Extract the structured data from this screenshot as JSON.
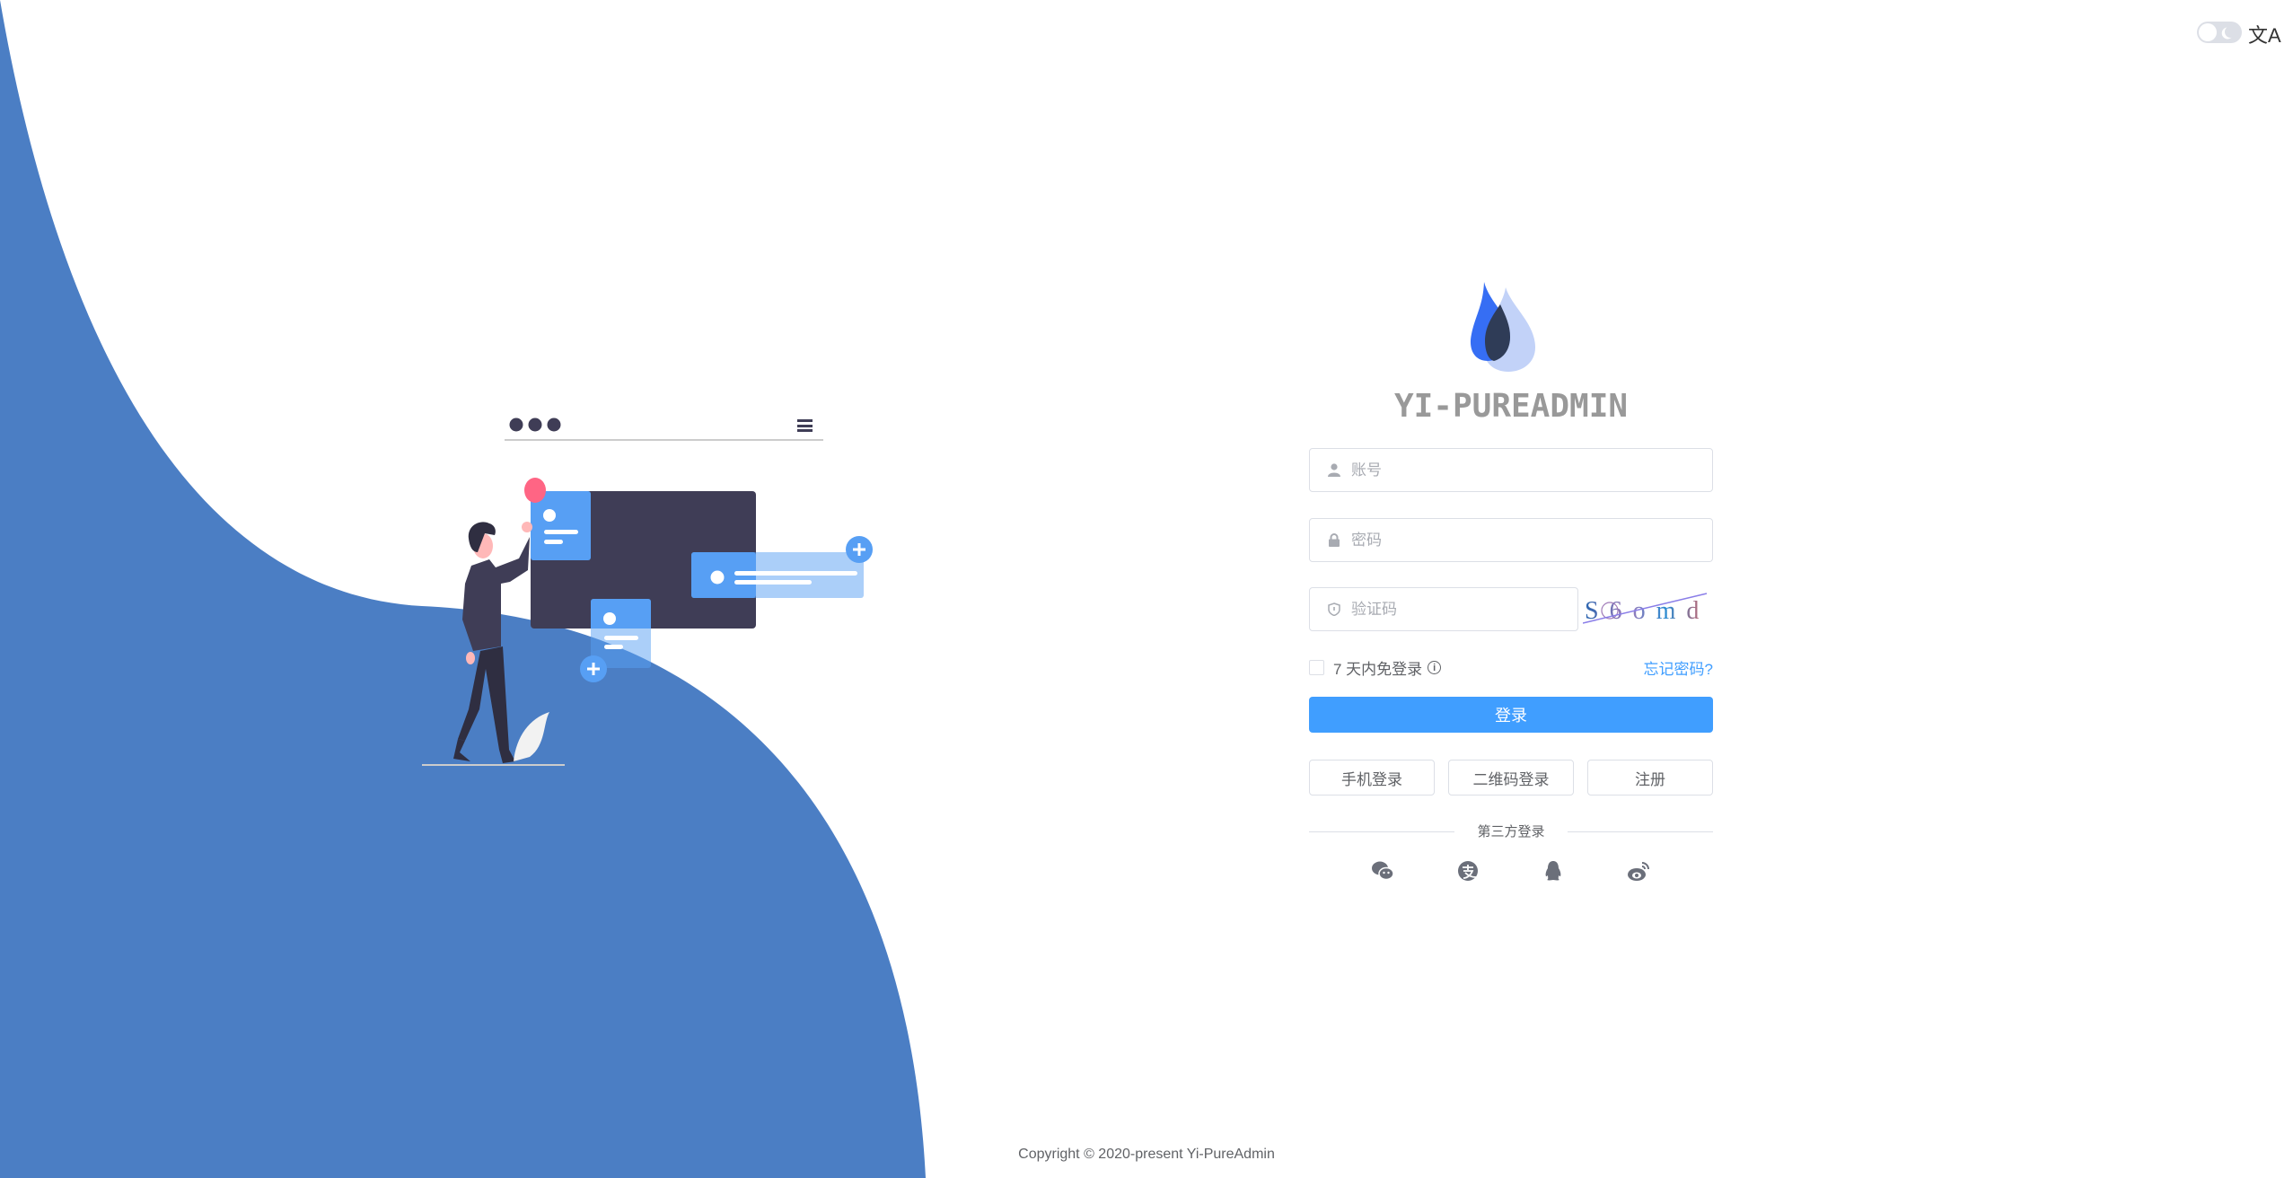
{
  "theme": {
    "accent": "#409eff",
    "background_wave": "#4b7ec4",
    "illustration_dark": "#3f3d56",
    "illustration_blue": "#579ff4",
    "illustration_red": "#ff6584"
  },
  "header": {
    "dark_mode_toggle": "off",
    "language_icon": "translate-icon",
    "language_glyph": "文A"
  },
  "brand": {
    "title": "YI-PUREADMIN"
  },
  "form": {
    "username": {
      "placeholder": "账号",
      "value": "",
      "icon": "user-icon"
    },
    "password": {
      "placeholder": "密码",
      "value": "",
      "icon": "lock-icon"
    },
    "captcha": {
      "placeholder": "验证码",
      "value": "",
      "icon": "shield-icon",
      "image_text": "S6omd"
    },
    "remember_label": "7 天内免登录",
    "remember_checked": false,
    "forgot_label": "忘记密码?",
    "login_label": "登录",
    "alt_buttons": [
      "手机登录",
      "二维码登录",
      "注册"
    ],
    "third_party_label": "第三方登录",
    "third_party_icons": [
      "wechat-icon",
      "alipay-icon",
      "qq-icon",
      "weibo-icon"
    ]
  },
  "footer": {
    "copyright": "Copyright © 2020-present Yi-PureAdmin"
  }
}
